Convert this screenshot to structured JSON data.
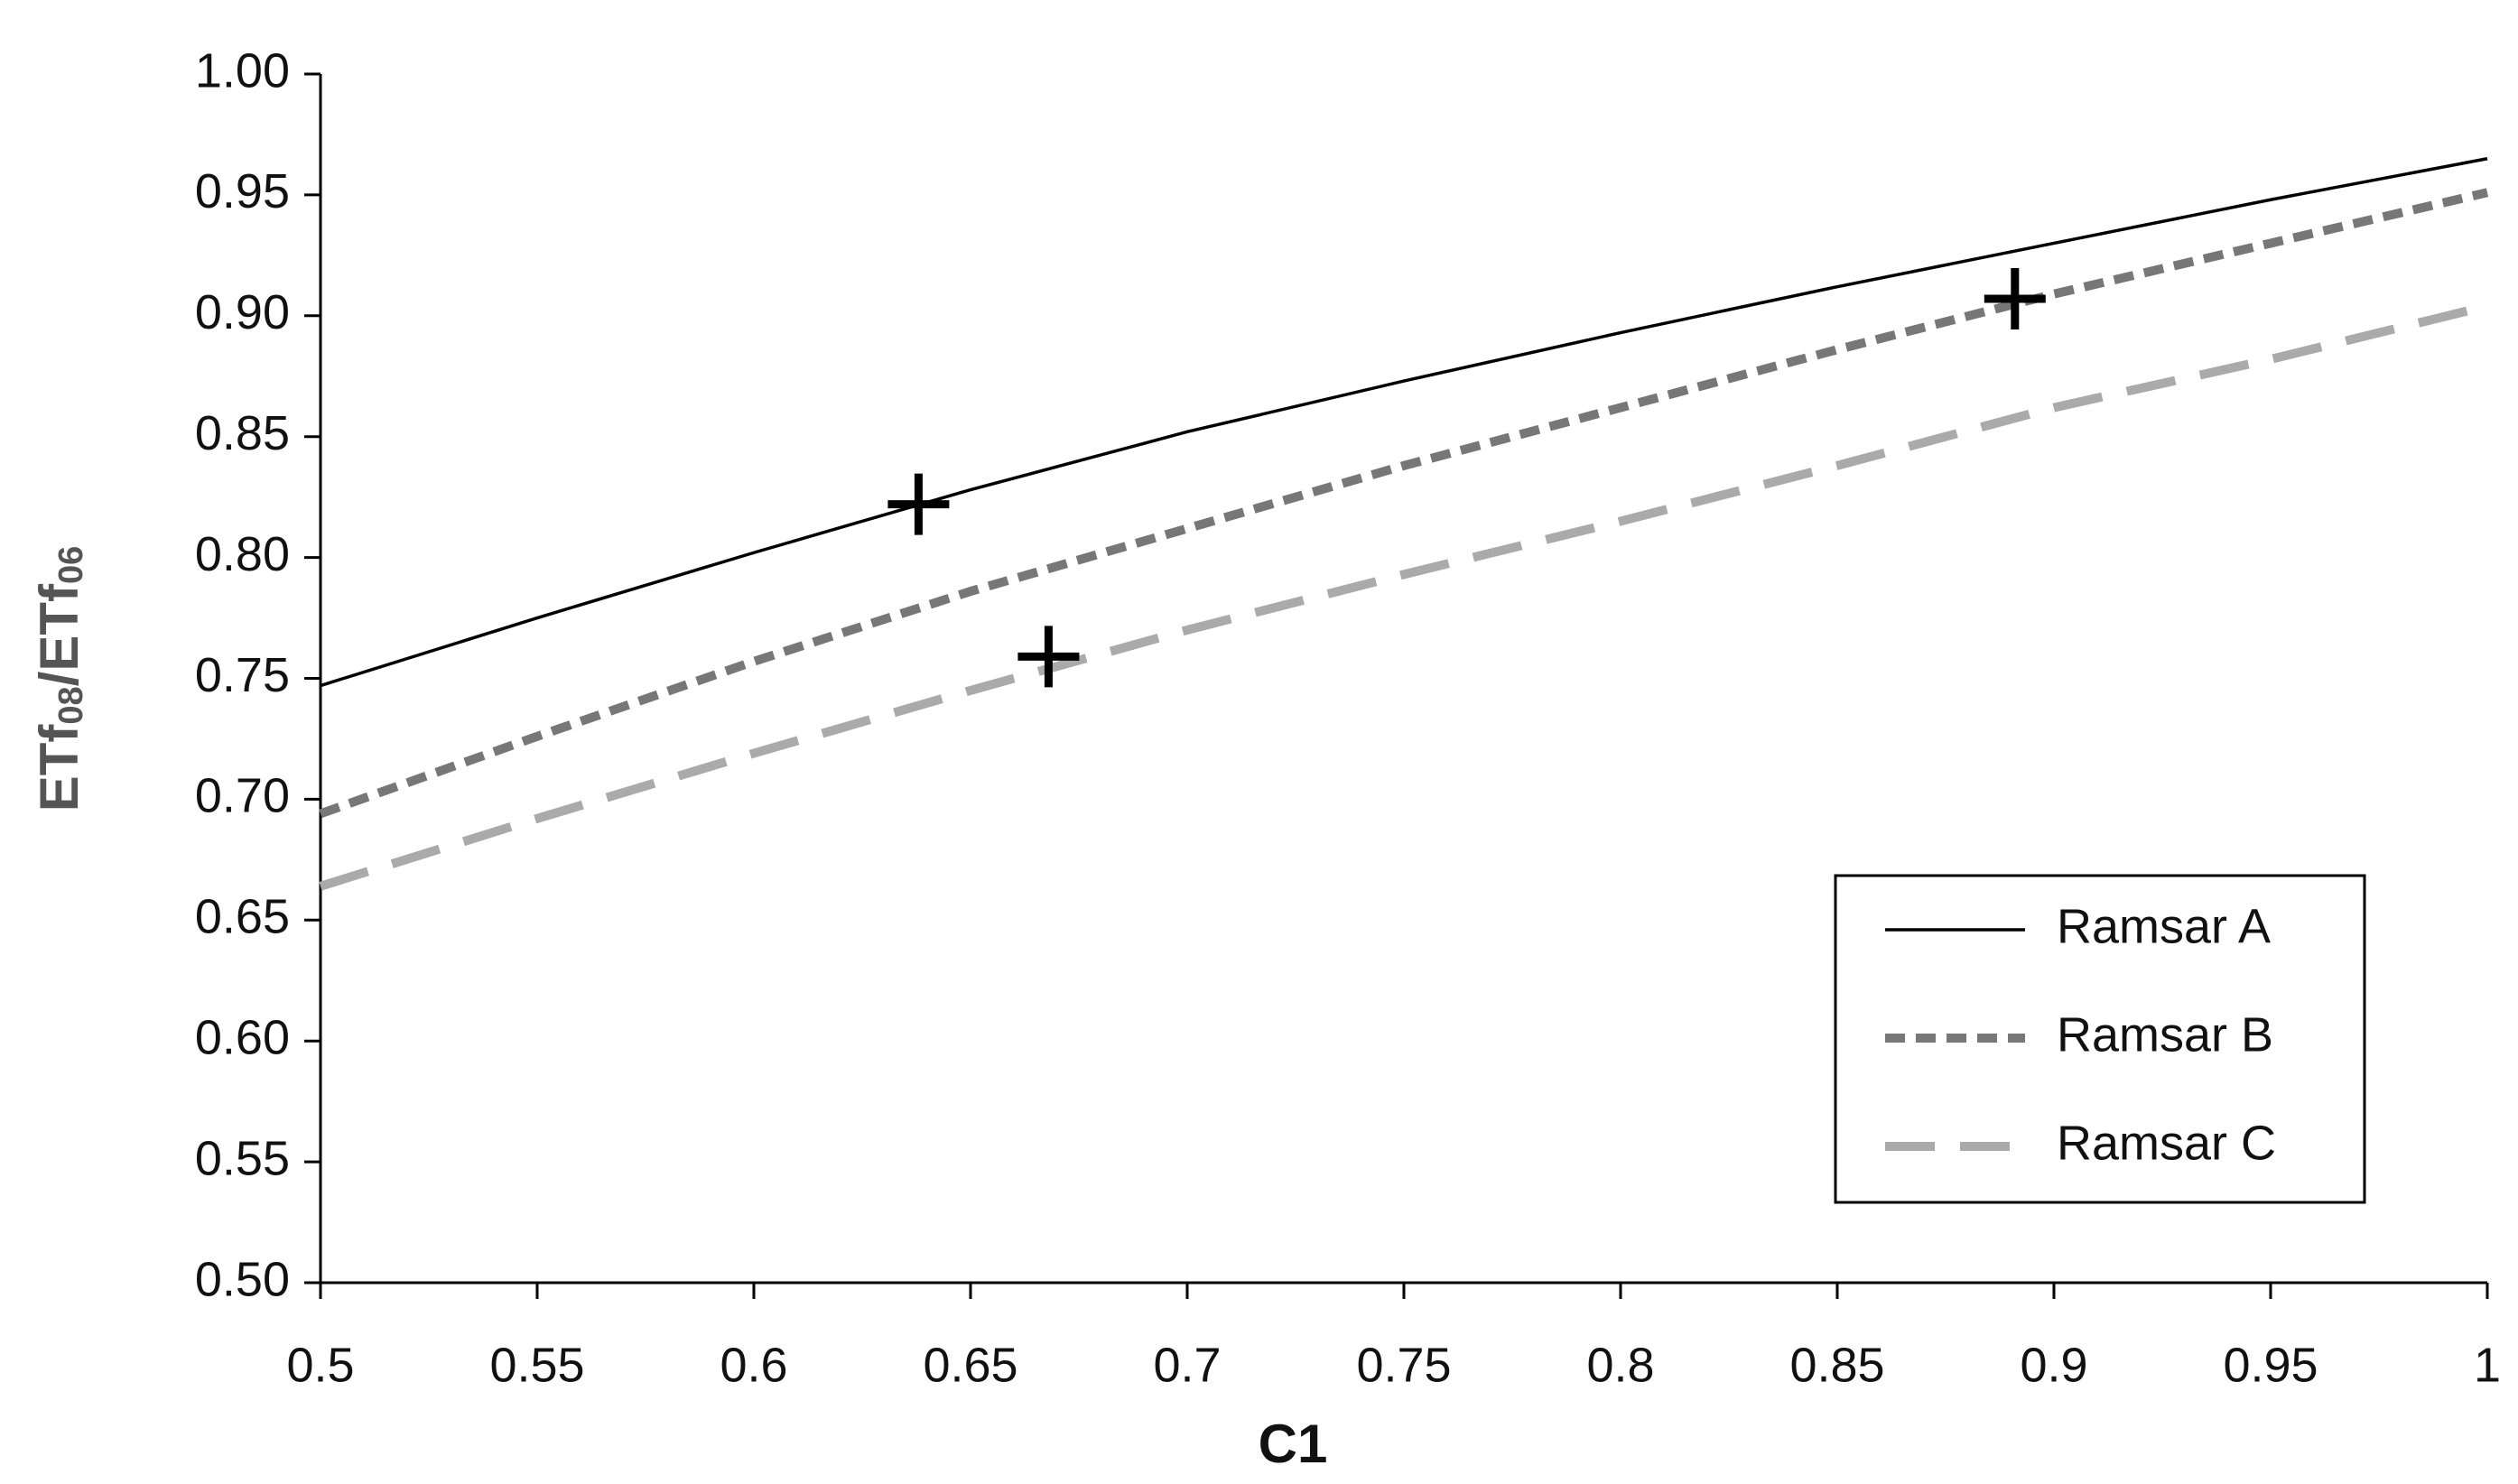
{
  "chart_data": {
    "type": "line",
    "x_label": "C1",
    "y_label": [
      "ETf",
      "08",
      "/ETf",
      "06"
    ],
    "x": [
      0.5,
      0.55,
      0.6,
      0.65,
      0.7,
      0.75,
      0.8,
      0.85,
      0.9,
      0.95,
      1
    ],
    "series": [
      {
        "name": "Ramsar A",
        "color": "#000000",
        "dash": "solid",
        "values": [
          0.747,
          0.775,
          0.802,
          0.828,
          0.852,
          0.873,
          0.893,
          0.912,
          0.93,
          0.948,
          0.965
        ]
      },
      {
        "name": "Ramsar B",
        "color": "#777777",
        "dash": "short",
        "values": [
          0.694,
          0.726,
          0.757,
          0.786,
          0.812,
          0.838,
          0.862,
          0.886,
          0.909,
          0.93,
          0.951
        ]
      },
      {
        "name": "Ramsar C",
        "color": "#aaaaaa",
        "dash": "long",
        "values": [
          0.664,
          0.692,
          0.719,
          0.745,
          0.77,
          0.793,
          0.815,
          0.838,
          0.862,
          0.882,
          0.904
        ]
      }
    ],
    "markers": {
      "color": "#000000",
      "x": [
        0.638,
        0.668,
        0.891
      ],
      "values": [
        0.822,
        0.759,
        0.907
      ]
    },
    "xlim": [
      0.5,
      1
    ],
    "xticks": [
      0.5,
      0.55,
      0.6,
      0.65,
      0.7,
      0.75,
      0.8,
      0.85,
      0.9,
      0.95,
      1
    ],
    "ylim": [
      0.5,
      1
    ],
    "yticks": [
      {
        "value": 0.5,
        "label": "0.50"
      },
      {
        "value": 0.55,
        "label": "0.55"
      },
      {
        "value": 0.6,
        "label": "0.60"
      },
      {
        "value": 0.65,
        "label": "0.65"
      },
      {
        "value": 0.7,
        "label": "0.70"
      },
      {
        "value": 0.75,
        "label": "0.75"
      },
      {
        "value": 0.8,
        "label": "0.80"
      },
      {
        "value": 0.85,
        "label": "0.85"
      },
      {
        "value": 0.9,
        "label": "0.90"
      },
      {
        "value": 0.95,
        "label": "0.95"
      },
      {
        "value": 1,
        "label": "1.00"
      }
    ],
    "grid": false,
    "legend": "lower-right"
  }
}
